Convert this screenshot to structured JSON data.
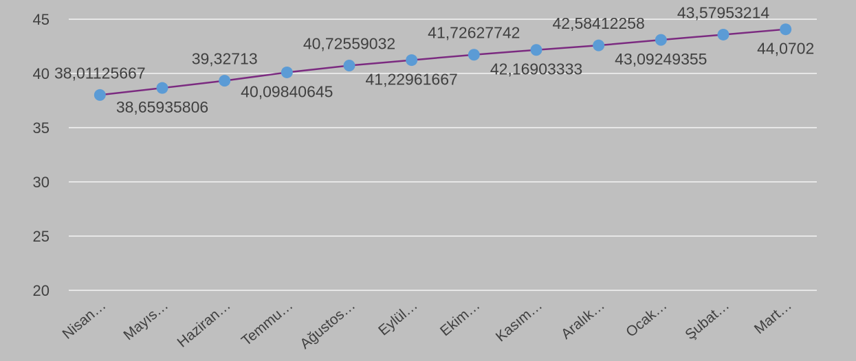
{
  "chart_data": {
    "type": "line",
    "title": "",
    "xlabel": "",
    "ylabel": "",
    "ylim": [
      20,
      45
    ],
    "yticks": [
      20,
      25,
      30,
      35,
      40,
      45
    ],
    "grid": true,
    "categories": [
      "Nisan…",
      "Mayıs…",
      "Haziran…",
      "Temmu…",
      "Ağustos…",
      "Eylül…",
      "Ekim…",
      "Kasım…",
      "Aralık…",
      "Ocak…",
      "Şubat…",
      "Mart…"
    ],
    "series": [
      {
        "values": [
          38.01125667,
          38.65935806,
          39.32713,
          40.09840645,
          40.72559032,
          41.22961667,
          41.72627742,
          42.16903333,
          42.58412258,
          43.09249355,
          43.57953214,
          44.0702
        ],
        "labels": [
          "38,01125667",
          "38,65935806",
          "39,32713",
          "40,09840645",
          "40,72559032",
          "41,22961667",
          "41,72627742",
          "42,16903333",
          "42,58412258",
          "43,09249355",
          "43,57953214",
          "44,0702"
        ],
        "label_positions": [
          "above",
          "below",
          "above",
          "below",
          "above",
          "below",
          "above",
          "below",
          "above",
          "below",
          "above",
          "below"
        ]
      }
    ],
    "colors": {
      "background": "#bfbfbf",
      "line": "#7b2a80",
      "marker": "#5b9bd5",
      "grid": "#ffffff",
      "text": "#404040"
    }
  }
}
